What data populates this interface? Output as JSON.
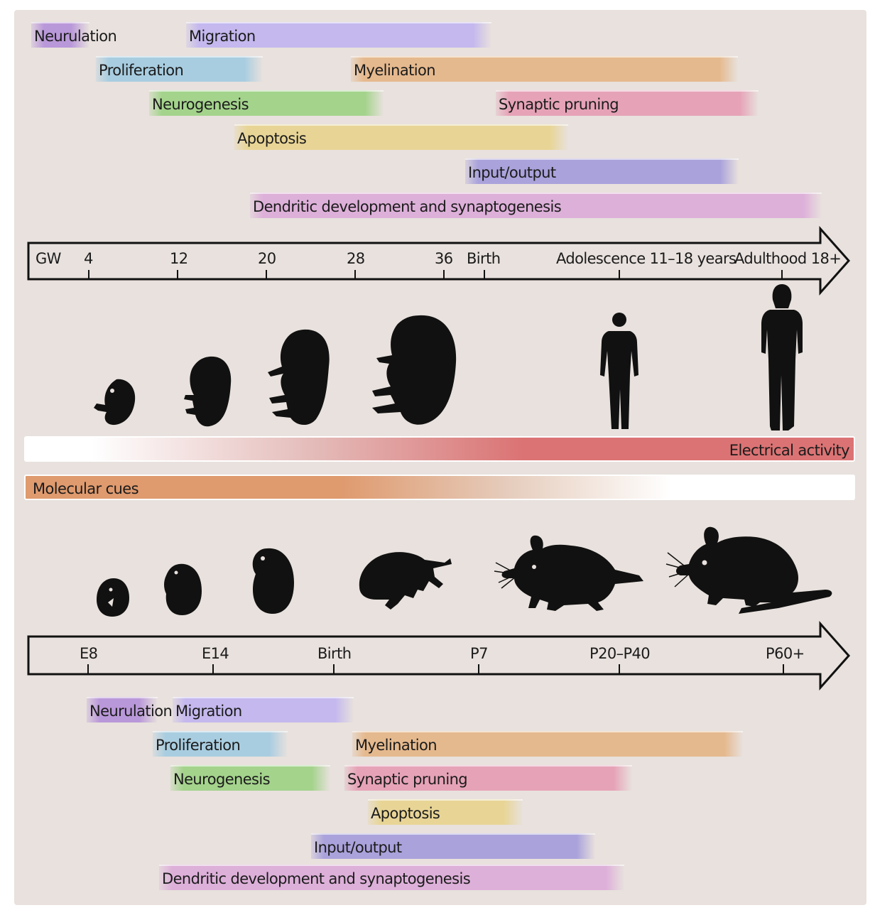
{
  "human_processes": [
    {
      "label": "Neurulation",
      "color": "#b998d9"
    },
    {
      "label": "Migration",
      "color": "#c4b8ee"
    },
    {
      "label": "Proliferation",
      "color": "#a8cde0"
    },
    {
      "label": "Myelination",
      "color": "#e5b98e"
    },
    {
      "label": "Neurogenesis",
      "color": "#a4d38c"
    },
    {
      "label": "Synaptic pruning",
      "color": "#e6a3b8"
    },
    {
      "label": "Apoptosis",
      "color": "#e8d596"
    },
    {
      "label": "Input/output",
      "color": "#aaa2db"
    },
    {
      "label": "Dendritic development and synaptogenesis",
      "color": "#ddb0d9"
    }
  ],
  "human_axis": {
    "start_label": "GW",
    "ticks": [
      "4",
      "12",
      "20",
      "28",
      "36",
      "Birth",
      "Adolescence 11–18 years",
      "Adulthood 18+"
    ]
  },
  "gradients": {
    "electrical_activity": {
      "label": "Electrical activity",
      "color": "#db7374"
    },
    "molecular_cues": {
      "label": "Molecular cues",
      "color": "#df9a6e"
    }
  },
  "mouse_axis": {
    "ticks": [
      "E8",
      "E14",
      "Birth",
      "P7",
      "P20–P40",
      "P60+"
    ]
  },
  "mouse_processes": [
    {
      "label": "Neurulation",
      "color": "#b998d9"
    },
    {
      "label": "Migration",
      "color": "#c4b8ee"
    },
    {
      "label": "Proliferation",
      "color": "#a8cde0"
    },
    {
      "label": "Myelination",
      "color": "#e5b98e"
    },
    {
      "label": "Neurogenesis",
      "color": "#a4d38c"
    },
    {
      "label": "Synaptic pruning",
      "color": "#e6a3b8"
    },
    {
      "label": "Apoptosis",
      "color": "#e8d596"
    },
    {
      "label": "Input/output",
      "color": "#aaa2db"
    },
    {
      "label": "Dendritic development and synaptogenesis",
      "color": "#ddb0d9"
    }
  ],
  "silhouettes": {
    "human": [
      "embryo-icon",
      "embryo-icon",
      "fetus-icon",
      "fetus-icon",
      "child-icon",
      "adult-icon"
    ],
    "mouse": [
      "embryo-icon",
      "embryo-icon",
      "embryo-icon",
      "mouse-pup-icon",
      "mouse-juvenile-icon",
      "mouse-adult-icon"
    ]
  }
}
